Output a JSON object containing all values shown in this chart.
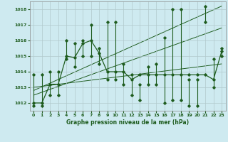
{
  "xlabel": "Graphe pression niveau de la mer (hPa)",
  "ylim": [
    1011.5,
    1018.5
  ],
  "xlim": [
    -0.5,
    23.5
  ],
  "yticks": [
    1012,
    1013,
    1014,
    1015,
    1016,
    1017,
    1018
  ],
  "xticks": [
    0,
    1,
    2,
    3,
    4,
    5,
    6,
    7,
    8,
    9,
    10,
    11,
    12,
    13,
    14,
    15,
    16,
    17,
    18,
    19,
    20,
    21,
    22,
    23
  ],
  "bg_color": "#ceeaf0",
  "line_color": "#1e5c1e",
  "grid_color": "#b0c8cc",
  "main_values": [
    1012.0,
    1012.0,
    1013.2,
    1013.2,
    1015.0,
    1014.9,
    1015.8,
    1016.0,
    1015.2,
    1014.0,
    1014.0,
    1014.0,
    1013.5,
    1013.8,
    1013.8,
    1013.8,
    1013.8,
    1013.8,
    1013.8,
    1013.8,
    1013.8,
    1013.8,
    1013.5,
    1015.3
  ],
  "min_values": [
    1011.8,
    1011.8,
    1012.5,
    1012.5,
    1014.8,
    1014.3,
    1015.0,
    1015.0,
    1014.5,
    1013.5,
    1013.5,
    1013.2,
    1012.5,
    1012.2,
    1013.2,
    1013.2,
    1012.0,
    1012.2,
    1012.2,
    1011.8,
    1011.8,
    1017.2,
    1013.0,
    1015.0
  ],
  "max_values": [
    1013.8,
    1013.8,
    1014.0,
    1014.0,
    1016.0,
    1015.8,
    1016.0,
    1017.0,
    1015.5,
    1017.2,
    1017.2,
    1014.5,
    1013.8,
    1013.2,
    1014.3,
    1014.5,
    1016.2,
    1018.0,
    1018.0,
    1013.5,
    1013.5,
    1018.2,
    1014.8,
    1015.5
  ],
  "trend_lines": [
    [
      0,
      1012.5,
      23,
      1016.8
    ],
    [
      0,
      1013.0,
      23,
      1014.5
    ],
    [
      0,
      1012.8,
      23,
      1018.2
    ]
  ]
}
